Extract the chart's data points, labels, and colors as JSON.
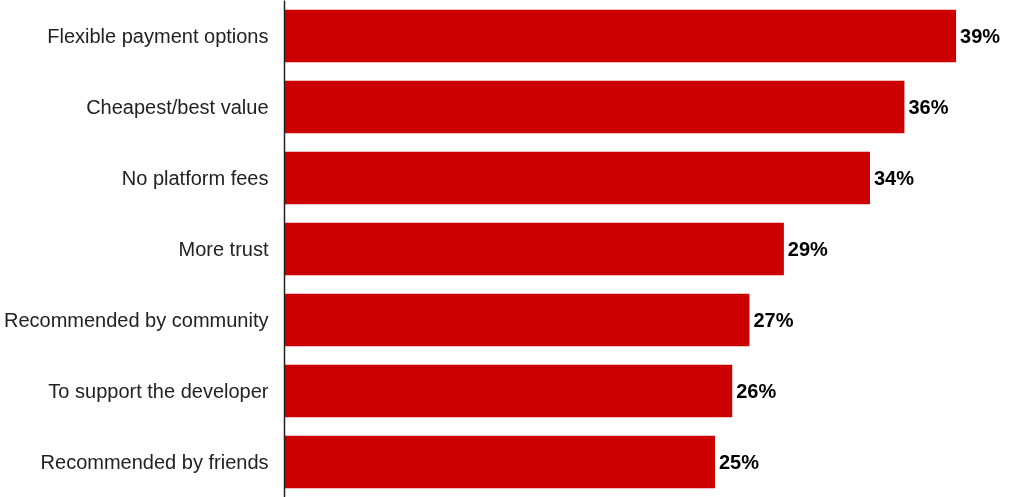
{
  "chart_data": {
    "type": "bar",
    "orientation": "horizontal",
    "categories": [
      "Flexible payment options",
      "Cheapest/best value",
      "No platform fees",
      "More trust",
      "Recommended by community",
      "To support the developer",
      "Recommended by friends"
    ],
    "values": [
      39,
      36,
      34,
      29,
      27,
      26,
      25
    ],
    "value_labels": [
      "39%",
      "36%",
      "34%",
      "29%",
      "27%",
      "26%",
      "25%"
    ],
    "color": "#cc0000",
    "tick_labels": "y",
    "grid": false
  }
}
